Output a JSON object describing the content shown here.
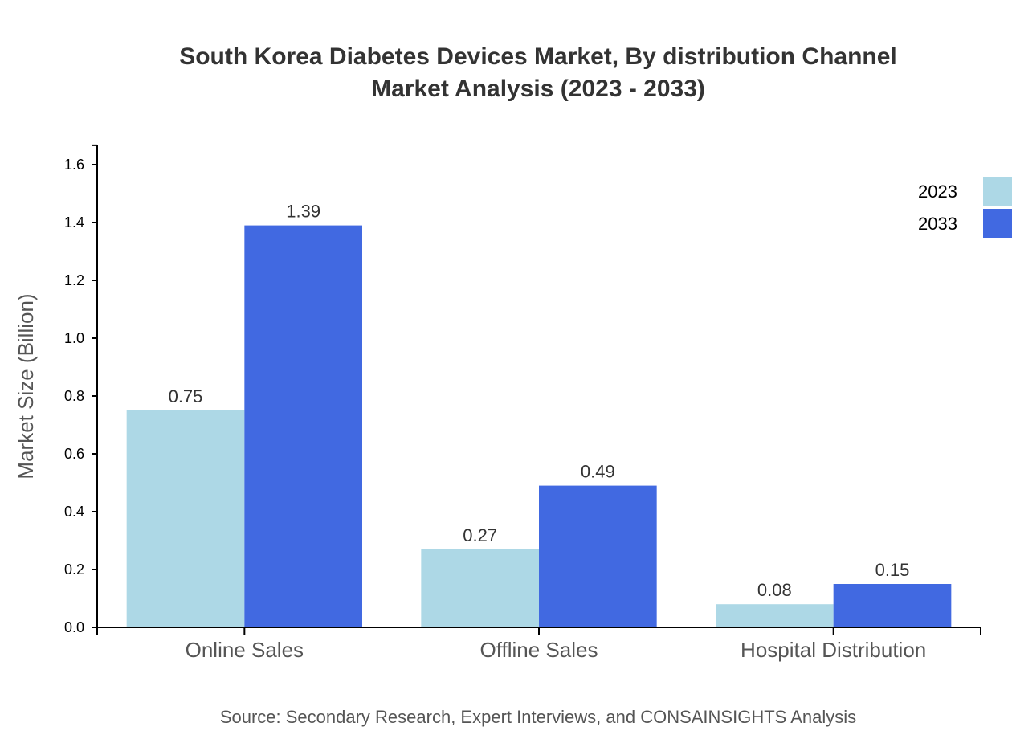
{
  "chart_data": {
    "type": "bar",
    "title_line1": "South Korea Diabetes Devices Market, By distribution Channel",
    "title_line2": "Market Analysis (2023 - 2033)",
    "xlabel": "",
    "ylabel": "Market Size (Billion)",
    "ylim": [
      0,
      1.667
    ],
    "yticks": [
      "0.0",
      "0.2",
      "0.4",
      "0.6",
      "0.8",
      "1.0",
      "1.2",
      "1.4",
      "1.6"
    ],
    "categories": [
      "Online Sales",
      "Offline Sales",
      "Hospital Distribution"
    ],
    "series": [
      {
        "name": "2023",
        "color": "#add8e6",
        "values": [
          0.75,
          0.27,
          0.08
        ]
      },
      {
        "name": "2033",
        "color": "#4169e1",
        "values": [
          1.39,
          0.49,
          0.15
        ]
      }
    ],
    "data_labels": [
      [
        "0.75",
        "0.27",
        "0.08"
      ],
      [
        "1.39",
        "0.49",
        "0.15"
      ]
    ],
    "legend_placement": "top-right",
    "grid": false,
    "source": "Source: Secondary Research, Expert Interviews, and CONSAINSIGHTS Analysis"
  }
}
